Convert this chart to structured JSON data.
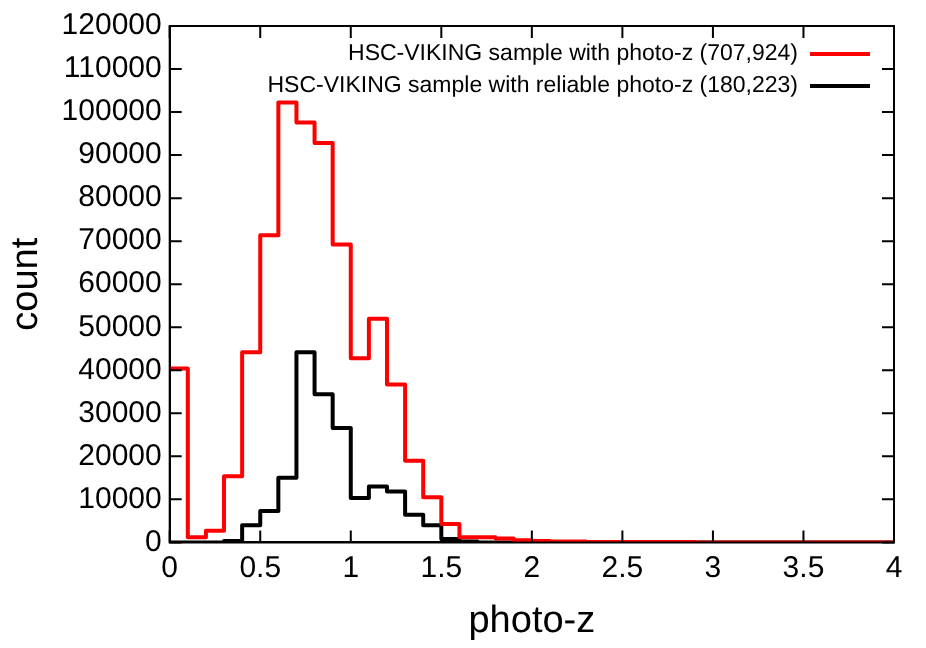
{
  "chart_data": {
    "type": "histogram",
    "xlabel": "photo-z",
    "ylabel": "count",
    "bins": [
      0,
      0.1,
      0.2,
      0.3,
      0.4,
      0.5,
      0.6,
      0.7,
      0.8,
      0.9,
      1,
      1.1,
      1.2,
      1.3,
      1.4,
      1.5,
      1.6,
      1.7,
      1.8,
      1.9,
      2,
      2.1,
      2.2,
      2.3,
      2.4,
      2.5,
      2.6,
      2.7,
      2.8,
      2.9,
      3,
      3.1,
      3.2,
      3.3,
      3.4,
      3.5,
      3.6,
      3.7,
      3.8,
      3.9,
      4
    ],
    "series": [
      {
        "name": "HSC-VIKING sample with photo-z (707,924)",
        "color": "#ff0000",
        "values": [
          40400,
          1200,
          2700,
          15400,
          44200,
          71400,
          102200,
          97600,
          92800,
          69200,
          42800,
          52000,
          36700,
          19000,
          10500,
          4300,
          1200,
          1200,
          900,
          500,
          300,
          200,
          200,
          100,
          100,
          100,
          100,
          100,
          100,
          0,
          0,
          0,
          0,
          0,
          0,
          0,
          0,
          0,
          0,
          0
        ]
      },
      {
        "name": "HSC-VIKING sample with reliable photo-z (180,223)",
        "color": "#000000",
        "values": [
          0,
          0,
          0,
          300,
          4000,
          7300,
          15000,
          44200,
          34400,
          26600,
          10300,
          13000,
          11800,
          6400,
          4000,
          800,
          200,
          0,
          0,
          0,
          0,
          0,
          0,
          0,
          0,
          0,
          0,
          0,
          0,
          0,
          0,
          0,
          0,
          0,
          0,
          0,
          0,
          0,
          0,
          0
        ]
      }
    ],
    "xlim": [
      0,
      4
    ],
    "xticks": [
      0,
      0.5,
      1,
      1.5,
      2,
      2.5,
      3,
      3.5,
      4
    ],
    "ylim": [
      0,
      120000
    ],
    "yticks": [
      0,
      10000,
      20000,
      30000,
      40000,
      50000,
      60000,
      70000,
      80000,
      90000,
      100000,
      110000,
      120000
    ],
    "grid": false,
    "legend": "top right"
  }
}
